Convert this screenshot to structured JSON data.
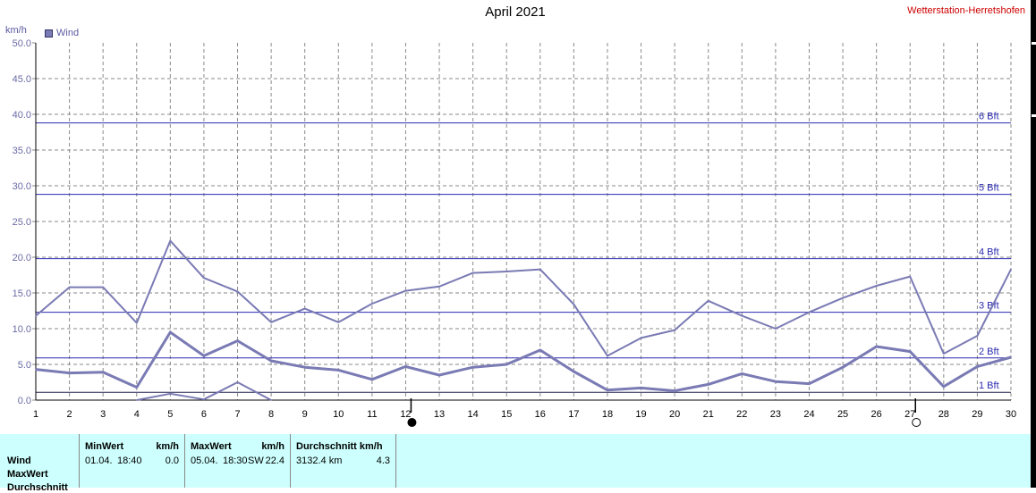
{
  "title": "April 2021",
  "station": "Wetterstation-Herretshofen",
  "y_unit": "km/h",
  "legend": {
    "label": "Wind",
    "color": "#7a7ab4"
  },
  "chart_data": {
    "type": "line",
    "ylim": [
      0,
      50
    ],
    "y_ticks": [
      "0.0",
      "5.0",
      "10.0",
      "15.0",
      "20.0",
      "25.0",
      "30.0",
      "35.0",
      "40.0",
      "45.0",
      "50.0"
    ],
    "x": [
      1,
      2,
      3,
      4,
      5,
      6,
      7,
      8,
      9,
      10,
      11,
      12,
      13,
      14,
      15,
      16,
      17,
      18,
      19,
      20,
      21,
      22,
      23,
      24,
      25,
      26,
      27,
      28,
      29,
      30
    ],
    "series": [
      {
        "values": [
          11.8,
          15.8,
          15.8,
          10.8,
          22.3,
          17.1,
          15.2,
          10.9,
          12.8,
          10.9,
          13.5,
          15.3,
          15.9,
          17.8,
          18.0,
          18.3,
          13.4,
          6.2,
          8.7,
          9.8,
          13.9,
          11.8,
          10.0,
          12.3,
          14.3,
          16.0,
          17.3,
          6.5,
          9.0,
          18.3
        ]
      },
      {
        "values": [
          4.3,
          3.8,
          3.9,
          1.8,
          9.5,
          6.2,
          8.3,
          5.5,
          4.6,
          4.2,
          2.9,
          4.7,
          3.5,
          4.6,
          5.0,
          7.0,
          4.0,
          1.4,
          1.7,
          1.3,
          2.2,
          3.7,
          2.6,
          2.3,
          4.6,
          7.5,
          6.8,
          1.9,
          4.7,
          6.0
        ]
      },
      {
        "values": [
          null,
          null,
          null,
          0.0,
          0.9,
          0.1,
          2.5,
          0.0,
          null,
          null,
          null,
          null,
          null,
          null,
          null,
          null,
          null,
          null,
          null,
          null,
          null,
          null,
          null,
          null,
          null,
          null,
          null,
          null,
          null,
          null
        ]
      }
    ],
    "beaufort_lines": [
      {
        "label": "1 Bft",
        "value": 1.1
      },
      {
        "label": "2 Bft",
        "value": 5.9
      },
      {
        "label": "3 Bft",
        "value": 12.3
      },
      {
        "label": "4 Bft",
        "value": 19.8
      },
      {
        "label": "5 Bft",
        "value": 28.8
      },
      {
        "label": "6 Bft",
        "value": 38.8
      }
    ],
    "moon_markers": [
      {
        "day": 12,
        "phase": "new"
      },
      {
        "day": 27,
        "phase": "full"
      }
    ],
    "grid": true
  },
  "stats": {
    "headers": {
      "min": "MinWert",
      "min_unit": "km/h",
      "max": "MaxWert",
      "max_unit": "km/h",
      "avg": "Durchschnitt km/h"
    },
    "rows": {
      "wind": "Wind",
      "maxwert": "MaxWert",
      "third": "Durchschnitt"
    },
    "values": {
      "min_date": "01.04.",
      "min_time": "18:40",
      "min_value": "0.0",
      "max_date": "05.04.",
      "max_time": "18:30",
      "max_dir": "SW",
      "max_value": "22.4",
      "distance": "3132.4 km",
      "avg_value": "4.3"
    }
  }
}
